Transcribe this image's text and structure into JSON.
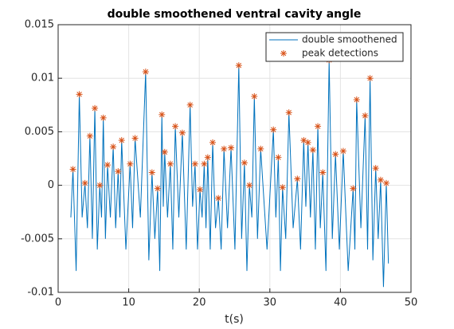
{
  "chart_data": {
    "type": "line",
    "title": "double smoothened ventral cavity angle",
    "xlabel": "t(s)",
    "xlim": [
      0,
      50
    ],
    "xticks": [
      0,
      10,
      20,
      30,
      40,
      50
    ],
    "ylim": [
      -0.01,
      0.015
    ],
    "yticks": [
      -0.01,
      -0.005,
      0,
      0.005,
      0.01,
      0.015
    ],
    "grid": true,
    "legend": "northeast",
    "series": [
      {
        "name": "double smoothened",
        "type": "line",
        "color": "#0072bd",
        "x": [
          1.8,
          2.1,
          2.55,
          3.0,
          3.4,
          3.8,
          4.15,
          4.5,
          4.85,
          5.2,
          5.55,
          5.9,
          6.15,
          6.4,
          6.7,
          7.0,
          7.4,
          7.8,
          8.15,
          8.5,
          8.75,
          9.0,
          9.6,
          10.2,
          10.55,
          10.9,
          11.65,
          12.4,
          12.85,
          13.3,
          13.7,
          14.1,
          14.4,
          14.7,
          14.9,
          15.1,
          15.5,
          15.9,
          16.25,
          16.6,
          17.1,
          17.6,
          18.15,
          18.7,
          19.05,
          19.4,
          19.75,
          20.1,
          20.4,
          20.7,
          20.95,
          21.2,
          21.55,
          21.9,
          22.3,
          22.7,
          23.1,
          23.5,
          24.0,
          24.5,
          25.05,
          25.6,
          26.0,
          26.4,
          26.75,
          27.1,
          27.45,
          27.8,
          28.25,
          28.7,
          29.6,
          30.5,
          30.85,
          31.2,
          31.5,
          31.8,
          32.25,
          32.7,
          33.3,
          33.9,
          34.35,
          34.8,
          35.1,
          35.4,
          35.75,
          36.1,
          36.45,
          36.8,
          37.15,
          37.5,
          37.95,
          38.4,
          38.85,
          39.3,
          39.85,
          40.4,
          41.1,
          41.8,
          42.05,
          42.3,
          42.9,
          43.5,
          43.85,
          44.2,
          44.6,
          45.0,
          45.35,
          45.7,
          46.1,
          46.5,
          46.8
        ],
        "values": [
          -0.003,
          0.0015,
          -0.008,
          0.0085,
          -0.003,
          0.0002,
          -0.004,
          0.0046,
          -0.005,
          0.0072,
          -0.006,
          0,
          -0.003,
          0.0063,
          -0.005,
          0.0019,
          -0.003,
          0.0036,
          -0.004,
          0.0013,
          -0.003,
          0.0042,
          -0.006,
          0.002,
          -0.004,
          0.0044,
          -0.003,
          0.0106,
          -0.007,
          0.0012,
          -0.005,
          -0.0003,
          -0.008,
          0.0066,
          -0.002,
          0.0031,
          -0.003,
          0.002,
          -0.006,
          0.0055,
          -0.003,
          0.0049,
          -0.006,
          0.0075,
          -0.002,
          0.002,
          -0.006,
          -0.0004,
          -0.003,
          0.002,
          -0.004,
          0.0026,
          -0.006,
          0.004,
          -0.004,
          -0.0012,
          -0.006,
          0.0034,
          -0.004,
          0.0035,
          -0.006,
          0.0112,
          -0.005,
          0.0021,
          -0.008,
          0,
          -0.003,
          0.0083,
          -0.005,
          0.0034,
          -0.006,
          0.0052,
          -0.003,
          0.0026,
          -0.008,
          -0.0002,
          -0.005,
          0.0068,
          -0.004,
          0.0006,
          -0.006,
          0.0042,
          -0.002,
          0.004,
          -0.003,
          0.0033,
          -0.006,
          0.0055,
          -0.004,
          0.0012,
          -0.008,
          0.0117,
          -0.005,
          0.0029,
          -0.006,
          0.0032,
          -0.008,
          -0.0003,
          -0.006,
          0.008,
          -0.004,
          0.0065,
          -0.006,
          0.01,
          -0.007,
          0.0016,
          -0.005,
          0.0005,
          -0.0095,
          0.0002,
          -0.0073
        ]
      },
      {
        "name": "peak detections",
        "type": "scatter",
        "marker": "*",
        "color": "#d95319",
        "x": [
          2.1,
          3.0,
          3.8,
          4.5,
          5.2,
          5.9,
          6.4,
          7.0,
          7.8,
          8.5,
          9.0,
          10.2,
          10.9,
          12.4,
          13.3,
          14.1,
          14.7,
          15.1,
          15.9,
          16.6,
          17.6,
          18.7,
          19.4,
          20.1,
          20.7,
          21.2,
          21.9,
          22.7,
          23.5,
          24.5,
          25.6,
          26.4,
          27.1,
          27.8,
          28.7,
          30.5,
          31.2,
          31.8,
          32.7,
          33.9,
          34.8,
          35.4,
          36.1,
          36.8,
          37.5,
          38.4,
          39.3,
          40.4,
          41.8,
          42.3,
          43.5,
          44.2,
          45.0,
          45.7,
          46.5
        ],
        "values": [
          0.0015,
          0.0085,
          0.0002,
          0.0046,
          0.0072,
          0,
          0.0063,
          0.0019,
          0.0036,
          0.0013,
          0.0042,
          0.002,
          0.0044,
          0.0106,
          0.0012,
          -0.0003,
          0.0066,
          0.0031,
          0.002,
          0.0055,
          0.0049,
          0.0075,
          0.002,
          -0.0004,
          0.002,
          0.0026,
          0.004,
          -0.0012,
          0.0034,
          0.0035,
          0.0112,
          0.0021,
          0,
          0.0083,
          0.0034,
          0.0052,
          0.0026,
          -0.0002,
          0.0068,
          0.0006,
          0.0042,
          0.004,
          0.0033,
          0.0055,
          0.0012,
          0.0117,
          0.0029,
          0.0032,
          -0.0003,
          0.008,
          0.0065,
          0.01,
          0.0016,
          0.0005,
          0.0002
        ]
      }
    ]
  }
}
